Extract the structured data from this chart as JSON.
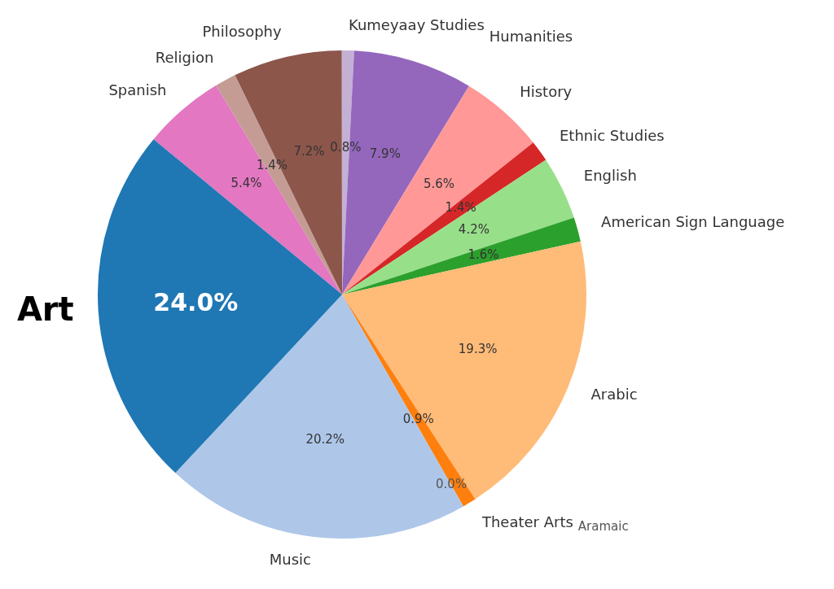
{
  "chart_data": {
    "type": "pie",
    "categories": [
      "Art",
      "Music",
      "Aramaic",
      "Theater Arts",
      "Arabic",
      "American Sign Language",
      "English",
      "Ethnic Studies",
      "History",
      "Humanities",
      "Kumeyaay Studies",
      "Philosophy",
      "Religion",
      "Spanish"
    ],
    "values": [
      24.0,
      20.2,
      0.0,
      0.9,
      19.3,
      1.6,
      4.2,
      1.4,
      5.6,
      7.9,
      0.8,
      7.2,
      1.4,
      5.4
    ],
    "value_labels": [
      "24.0%",
      "20.2%",
      "0.0%",
      "0.9%",
      "19.3%",
      "1.6%",
      "4.2%",
      "1.4%",
      "5.6%",
      "7.9%",
      "0.8%",
      "7.2%",
      "1.4%",
      "5.4%"
    ],
    "colors": [
      "#1f77b4",
      "#aec7e8",
      "#f7b6d2",
      "#ff7f0e",
      "#ffbb78",
      "#2ca02c",
      "#98df8a",
      "#d62728",
      "#ff9896",
      "#9467bd",
      "#c5b0d5",
      "#8c564b",
      "#c49c94",
      "#e377c2"
    ],
    "legend": false
  }
}
